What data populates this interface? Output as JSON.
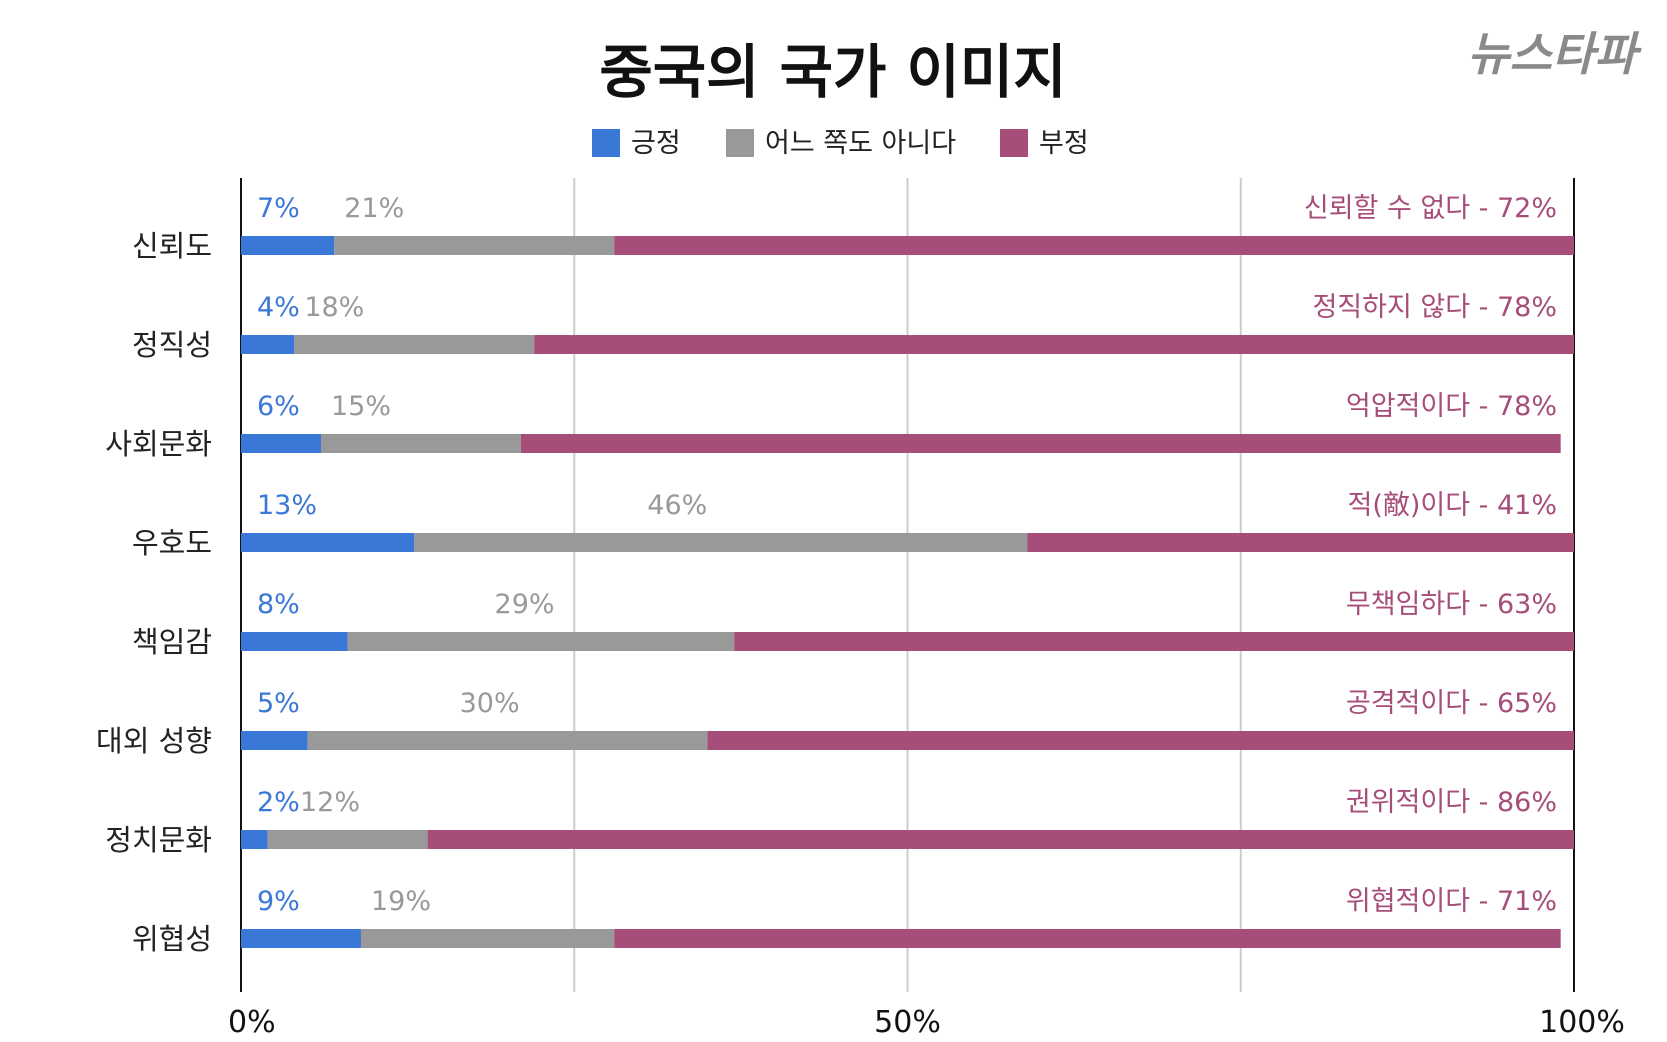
{
  "logo": "뉴스타파",
  "chart_data": {
    "type": "bar",
    "stacked": true,
    "orientation": "horizontal",
    "title": "중국의 국가 이미지",
    "legend_position": "top",
    "categories": [
      "신뢰도",
      "정직성",
      "사회문화",
      "우호도",
      "책임감",
      "대외 성향",
      "정치문화",
      "위협성"
    ],
    "series": [
      {
        "name": "긍정",
        "color": "#3a78d8",
        "values": [
          7,
          4,
          6,
          13,
          8,
          5,
          2,
          9
        ]
      },
      {
        "name": "어느 쪽도 아니다",
        "color": "#999999",
        "values": [
          21,
          18,
          15,
          46,
          29,
          30,
          12,
          19
        ]
      },
      {
        "name": "부정",
        "color": "#a64d79",
        "values": [
          72,
          78,
          78,
          41,
          63,
          65,
          86,
          71
        ]
      }
    ],
    "negative_labels": [
      "신뢰할 수 없다",
      "정직하지 않다",
      "억압적이다",
      "적(敵)이다",
      "무책임하다",
      "공격적이다",
      "권위적이다",
      "위협적이다"
    ],
    "xlim": [
      0,
      100
    ],
    "xticks": [
      0,
      50,
      100
    ],
    "xtick_labels": [
      "0%",
      "50%",
      "100%"
    ],
    "grid": true
  }
}
